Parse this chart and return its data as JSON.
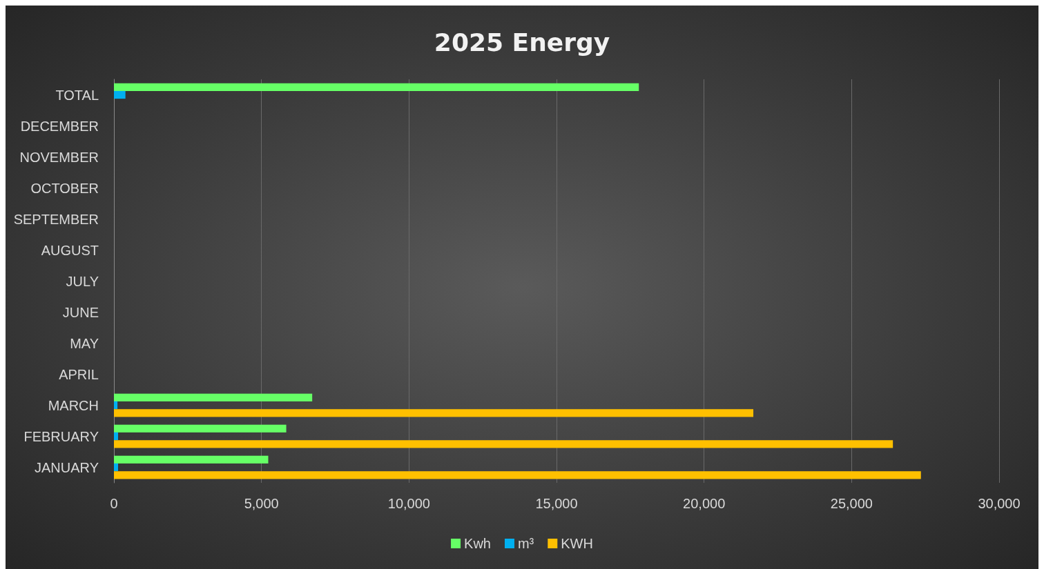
{
  "chart_data": {
    "type": "bar",
    "orientation": "horizontal",
    "title": "2025 Energy",
    "categories": [
      "TOTAL",
      "DECEMBER",
      "NOVEMBER",
      "OCTOBER",
      "SEPTEMBER",
      "AUGUST",
      "JULY",
      "JUNE",
      "MAY",
      "APRIL",
      "MARCH",
      "FEBRUARY",
      "JANUARY"
    ],
    "series": [
      {
        "name": "Kwh",
        "color": "#66ff66",
        "values": [
          17790,
          null,
          null,
          null,
          null,
          null,
          null,
          null,
          null,
          null,
          6720,
          5840,
          5230
        ]
      },
      {
        "name": "m³",
        "color": "#00b0f0",
        "values": [
          390,
          null,
          null,
          null,
          null,
          null,
          null,
          null,
          null,
          null,
          120,
          140,
          140
        ]
      },
      {
        "name": "KWH",
        "color": "#ffc000",
        "values": [
          null,
          null,
          null,
          null,
          null,
          null,
          null,
          null,
          null,
          null,
          21670,
          26400,
          27350
        ]
      }
    ],
    "xlim": [
      0,
      30000
    ],
    "xticks": [
      0,
      {
        "value": 5000,
        "label": "5,000"
      },
      {
        "value": 10000,
        "label": "10,000"
      },
      {
        "value": 15000,
        "label": "15,000"
      },
      {
        "value": 20000,
        "label": "20,000"
      },
      {
        "value": 25000,
        "label": "25,000"
      },
      {
        "value": 30000,
        "label": "30,000"
      }
    ],
    "grid": "x",
    "legend": "bottom"
  }
}
